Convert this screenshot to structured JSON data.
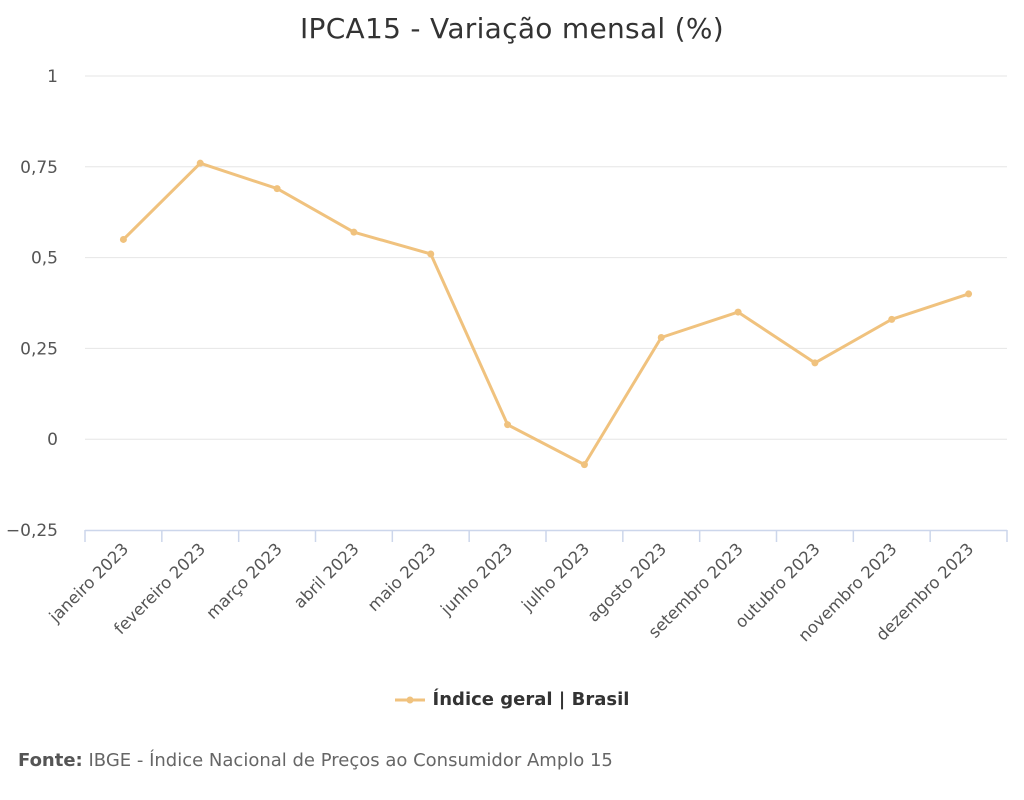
{
  "colors": {
    "series": "#f0c27e",
    "grid": "#e6e6e6",
    "axis": "#ccd6eb"
  },
  "chart_data": {
    "type": "line",
    "title": "IPCA15 - Variação mensal (%)",
    "categories": [
      "janeiro 2023",
      "fevereiro 2023",
      "março 2023",
      "abril 2023",
      "maio 2023",
      "junho 2023",
      "julho 2023",
      "agosto 2023",
      "setembro 2023",
      "outubro 2023",
      "novembro 2023",
      "dezembro 2023"
    ],
    "series": [
      {
        "name": "Índice geral | Brasil",
        "values": [
          0.55,
          0.76,
          0.69,
          0.57,
          0.51,
          0.04,
          -0.07,
          0.28,
          0.35,
          0.21,
          0.33,
          0.4
        ]
      }
    ],
    "ylim": [
      -0.25,
      1
    ],
    "yticks": [
      1,
      0.75,
      0.5,
      0.25,
      0,
      -0.25
    ],
    "ytick_labels": [
      "1",
      "0,75",
      "0,5",
      "0,25",
      "0",
      "−0,25"
    ],
    "grid": true,
    "legend": "bottom-center"
  },
  "legend": {
    "label": "Índice geral | Brasil"
  },
  "source": {
    "label": "Fonte:",
    "text": " IBGE - Índice Nacional de Preços ao Consumidor Amplo 15"
  }
}
